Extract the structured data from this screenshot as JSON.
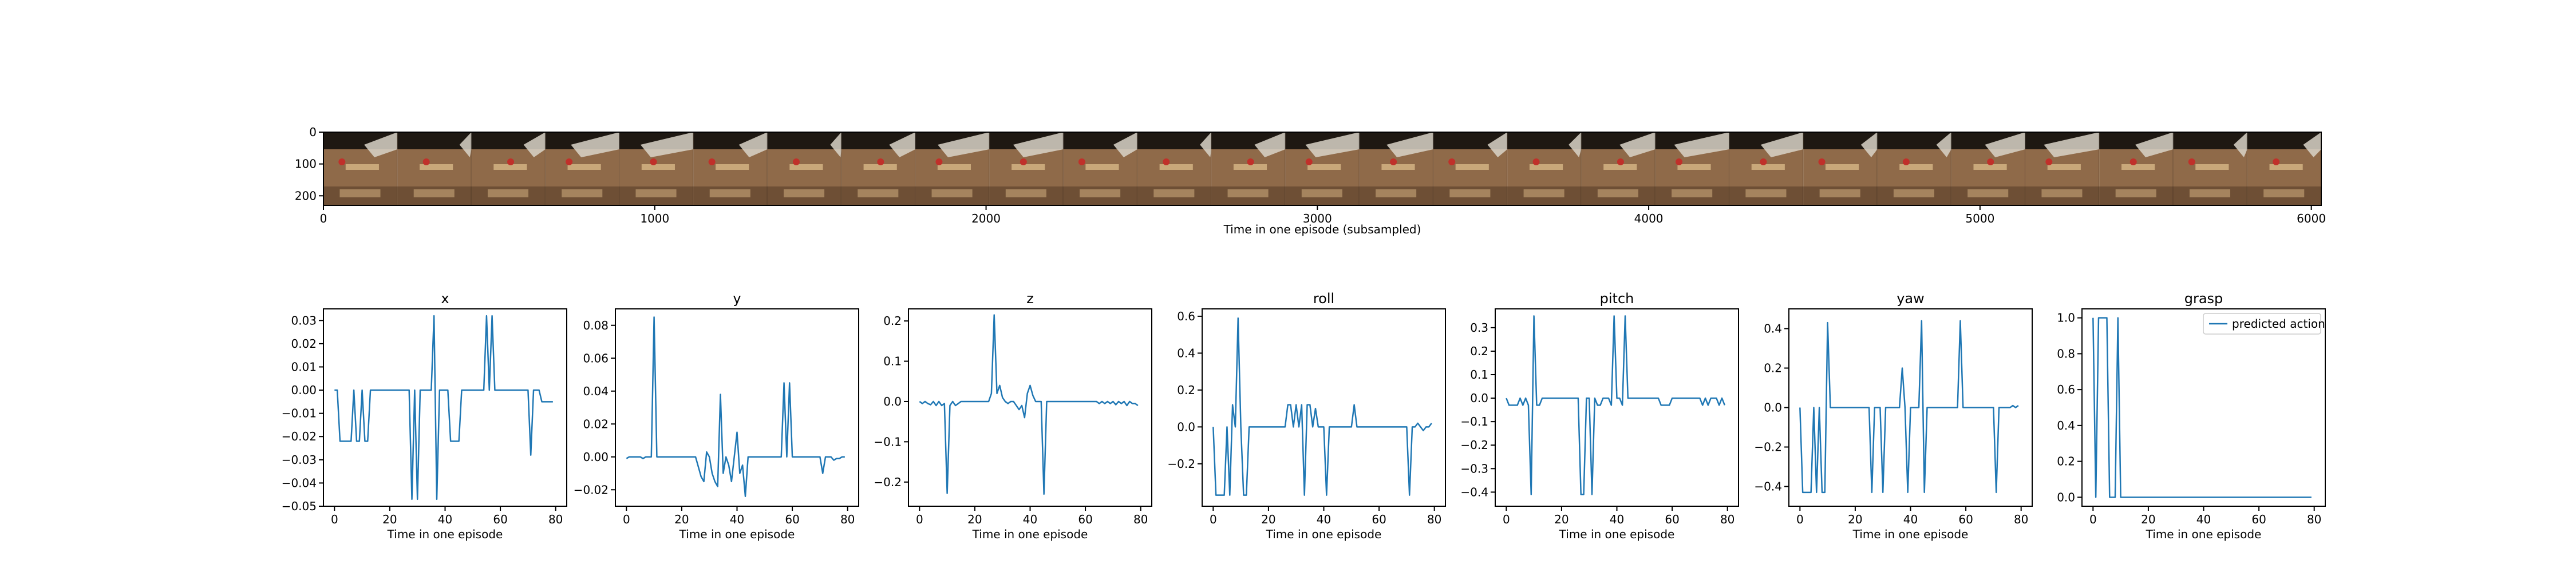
{
  "strip": {
    "xlabel": "Time in one episode (subsampled)",
    "xlim": [
      0,
      6030
    ],
    "ylim": [
      230,
      0
    ],
    "xticks": [
      0,
      1000,
      2000,
      3000,
      4000,
      5000,
      6000
    ],
    "yticks": [
      0,
      100,
      200
    ],
    "frame_count": 27,
    "frame_colors": {
      "wall": "#1e1812",
      "robot": "#d9d3c8",
      "table": "#8f6a49",
      "table_dark": "#6e4f35",
      "tray": "#c9a87a",
      "object": "#c0302a"
    }
  },
  "legend": {
    "label": "predicted action"
  },
  "colors": {
    "series": "#1f77b4"
  },
  "chart_data": [
    {
      "type": "line",
      "title": "x",
      "xlabel": "Time in one episode",
      "xlim": [
        -4,
        84
      ],
      "ylim": [
        -0.05,
        0.035
      ],
      "xticks": [
        0,
        20,
        40,
        60,
        80
      ],
      "yticks": [
        -0.05,
        -0.04,
        -0.03,
        -0.02,
        -0.01,
        0.0,
        0.01,
        0.02,
        0.03
      ],
      "tick_labels": [
        "−0.05",
        "−0.04",
        "−0.03",
        "−0.02",
        "−0.01",
        "0.00",
        "0.01",
        "0.02",
        "0.03"
      ],
      "x": [
        0,
        1,
        2,
        3,
        4,
        5,
        6,
        7,
        8,
        9,
        10,
        11,
        12,
        13,
        14,
        15,
        16,
        17,
        18,
        19,
        20,
        21,
        22,
        23,
        24,
        25,
        26,
        27,
        28,
        29,
        30,
        31,
        32,
        33,
        34,
        35,
        36,
        37,
        38,
        39,
        40,
        41,
        42,
        43,
        44,
        45,
        46,
        47,
        48,
        49,
        50,
        51,
        52,
        53,
        54,
        55,
        56,
        57,
        58,
        59,
        60,
        61,
        62,
        63,
        64,
        65,
        66,
        67,
        68,
        69,
        70,
        71,
        72,
        73,
        74,
        75,
        76,
        77,
        78,
        79
      ],
      "y": [
        0.0,
        0.0,
        -0.022,
        -0.022,
        -0.022,
        -0.022,
        -0.022,
        0.0,
        -0.022,
        -0.022,
        0.0,
        -0.022,
        -0.022,
        0.0,
        0.0,
        0.0,
        0.0,
        0.0,
        0.0,
        0.0,
        0.0,
        0.0,
        0.0,
        0.0,
        0.0,
        0.0,
        0.0,
        0.0,
        -0.047,
        0.0,
        -0.047,
        0.0,
        0.0,
        0.0,
        0.0,
        0.0,
        0.032,
        -0.047,
        0.0,
        0.0,
        0.0,
        0.0,
        -0.022,
        -0.022,
        -0.022,
        -0.022,
        0.0,
        0.0,
        0.0,
        0.0,
        0.0,
        0.0,
        0.0,
        0.0,
        0.0,
        0.032,
        0.0,
        0.032,
        0.0,
        0.0,
        0.0,
        0.0,
        0.0,
        0.0,
        0.0,
        0.0,
        0.0,
        0.0,
        0.0,
        0.0,
        0.0,
        -0.028,
        0.0,
        0.0,
        0.0,
        -0.005,
        -0.005,
        -0.005,
        -0.005,
        -0.005
      ]
    },
    {
      "type": "line",
      "title": "y",
      "xlabel": "Time in one episode",
      "xlim": [
        -4,
        84
      ],
      "ylim": [
        -0.03,
        0.09
      ],
      "xticks": [
        0,
        20,
        40,
        60,
        80
      ],
      "yticks": [
        -0.02,
        0.0,
        0.02,
        0.04,
        0.06,
        0.08
      ],
      "tick_labels": [
        "−0.02",
        "0.00",
        "0.02",
        "0.04",
        "0.06",
        "0.08"
      ],
      "x": [
        0,
        1,
        2,
        3,
        4,
        5,
        6,
        7,
        8,
        9,
        10,
        11,
        12,
        13,
        14,
        15,
        16,
        17,
        18,
        19,
        20,
        21,
        22,
        23,
        24,
        25,
        26,
        27,
        28,
        29,
        30,
        31,
        32,
        33,
        34,
        35,
        36,
        37,
        38,
        39,
        40,
        41,
        42,
        43,
        44,
        45,
        46,
        47,
        48,
        49,
        50,
        51,
        52,
        53,
        54,
        55,
        56,
        57,
        58,
        59,
        60,
        61,
        62,
        63,
        64,
        65,
        66,
        67,
        68,
        69,
        70,
        71,
        72,
        73,
        74,
        75,
        76,
        77,
        78,
        79
      ],
      "y": [
        -0.001,
        0.0,
        0.0,
        0.0,
        0.0,
        0.0,
        -0.001,
        0.0,
        0.0,
        0.0,
        0.085,
        0.0,
        0.0,
        0.0,
        0.0,
        0.0,
        0.0,
        0.0,
        0.0,
        0.0,
        0.0,
        0.0,
        0.0,
        0.0,
        0.0,
        0.0,
        -0.006,
        -0.012,
        -0.015,
        0.003,
        0.0,
        -0.01,
        -0.015,
        -0.018,
        0.038,
        -0.01,
        0.0,
        -0.005,
        -0.015,
        0.0,
        0.015,
        -0.01,
        -0.005,
        -0.024,
        0.0,
        0.0,
        0.0,
        0.0,
        0.0,
        0.0,
        0.0,
        0.0,
        0.0,
        0.0,
        0.0,
        0.0,
        0.0,
        0.045,
        0.0,
        0.045,
        0.0,
        0.0,
        0.0,
        0.0,
        0.0,
        0.0,
        0.0,
        0.0,
        0.0,
        0.0,
        0.0,
        -0.01,
        0.0,
        0.0,
        0.0,
        -0.002,
        -0.001,
        -0.001,
        0.0,
        0.0
      ]
    },
    {
      "type": "line",
      "title": "z",
      "xlabel": "Time in one episode",
      "xlim": [
        -4,
        84
      ],
      "ylim": [
        -0.26,
        0.23
      ],
      "xticks": [
        0,
        20,
        40,
        60,
        80
      ],
      "yticks": [
        -0.2,
        -0.1,
        0.0,
        0.1,
        0.2
      ],
      "tick_labels": [
        "−0.2",
        "−0.1",
        "0.0",
        "0.1",
        "0.2"
      ],
      "x": [
        0,
        1,
        2,
        3,
        4,
        5,
        6,
        7,
        8,
        9,
        10,
        11,
        12,
        13,
        14,
        15,
        16,
        17,
        18,
        19,
        20,
        21,
        22,
        23,
        24,
        25,
        26,
        27,
        28,
        29,
        30,
        31,
        32,
        33,
        34,
        35,
        36,
        37,
        38,
        39,
        40,
        41,
        42,
        43,
        44,
        45,
        46,
        47,
        48,
        49,
        50,
        51,
        52,
        53,
        54,
        55,
        56,
        57,
        58,
        59,
        60,
        61,
        62,
        63,
        64,
        65,
        66,
        67,
        68,
        69,
        70,
        71,
        72,
        73,
        74,
        75,
        76,
        77,
        78,
        79
      ],
      "y": [
        0.0,
        -0.005,
        0.0,
        -0.005,
        -0.008,
        0.0,
        -0.01,
        0.0,
        -0.01,
        -0.005,
        -0.228,
        -0.01,
        0.0,
        -0.01,
        -0.005,
        0.0,
        0.0,
        0.0,
        0.0,
        0.0,
        0.0,
        0.0,
        0.0,
        0.0,
        0.0,
        0.0,
        0.02,
        0.215,
        0.02,
        0.04,
        0.01,
        0.0,
        -0.005,
        0.0,
        0.0,
        -0.01,
        -0.02,
        -0.01,
        -0.04,
        0.02,
        0.04,
        0.015,
        0.0,
        0.0,
        0.0,
        -0.23,
        0.0,
        0.0,
        0.0,
        0.0,
        0.0,
        0.0,
        0.0,
        0.0,
        0.0,
        0.0,
        0.0,
        0.0,
        0.0,
        0.0,
        0.0,
        0.0,
        0.0,
        0.0,
        0.0,
        -0.005,
        0.0,
        -0.005,
        0.0,
        -0.005,
        0.0,
        -0.008,
        0.0,
        -0.005,
        0.0,
        -0.01,
        0.0,
        -0.005,
        -0.005,
        -0.01
      ]
    },
    {
      "type": "line",
      "title": "roll",
      "xlabel": "Time in one episode",
      "xlim": [
        -4,
        84
      ],
      "ylim": [
        -0.43,
        0.64
      ],
      "xticks": [
        0,
        20,
        40,
        60,
        80
      ],
      "yticks": [
        -0.2,
        0.0,
        0.2,
        0.4,
        0.6
      ],
      "tick_labels": [
        "−0.2",
        "0.0",
        "0.2",
        "0.4",
        "0.6"
      ],
      "x": [
        0,
        1,
        2,
        3,
        4,
        5,
        6,
        7,
        8,
        9,
        10,
        11,
        12,
        13,
        14,
        15,
        16,
        17,
        18,
        19,
        20,
        21,
        22,
        23,
        24,
        25,
        26,
        27,
        28,
        29,
        30,
        31,
        32,
        33,
        34,
        35,
        36,
        37,
        38,
        39,
        40,
        41,
        42,
        43,
        44,
        45,
        46,
        47,
        48,
        49,
        50,
        51,
        52,
        53,
        54,
        55,
        56,
        57,
        58,
        59,
        60,
        61,
        62,
        63,
        64,
        65,
        66,
        67,
        68,
        69,
        70,
        71,
        72,
        73,
        74,
        75,
        76,
        77,
        78,
        79
      ],
      "y": [
        0.0,
        -0.37,
        -0.37,
        -0.37,
        -0.37,
        0.0,
        -0.37,
        0.12,
        0.0,
        0.59,
        0.0,
        -0.37,
        -0.37,
        0.0,
        0.0,
        0.0,
        0.0,
        0.0,
        0.0,
        0.0,
        0.0,
        0.0,
        0.0,
        0.0,
        0.0,
        0.0,
        0.0,
        0.12,
        0.12,
        0.0,
        0.12,
        0.0,
        0.12,
        -0.37,
        0.12,
        0.12,
        0.0,
        0.1,
        0.0,
        0.0,
        0.0,
        -0.37,
        0.0,
        0.0,
        0.0,
        0.0,
        0.0,
        0.0,
        0.0,
        0.0,
        0.0,
        0.12,
        0.0,
        0.0,
        0.0,
        0.0,
        0.0,
        0.0,
        0.0,
        0.0,
        0.0,
        0.0,
        0.0,
        0.0,
        0.0,
        0.0,
        0.0,
        0.0,
        0.0,
        0.0,
        0.0,
        -0.37,
        0.0,
        0.0,
        0.02,
        0.0,
        -0.02,
        0.0,
        0.0,
        0.02
      ]
    },
    {
      "type": "line",
      "title": "pitch",
      "xlabel": "Time in one episode",
      "xlim": [
        -4,
        84
      ],
      "ylim": [
        -0.46,
        0.38
      ],
      "xticks": [
        0,
        20,
        40,
        60,
        80
      ],
      "yticks": [
        -0.4,
        -0.3,
        -0.2,
        -0.1,
        0.0,
        0.1,
        0.2,
        0.3
      ],
      "tick_labels": [
        "−0.4",
        "−0.3",
        "−0.2",
        "−0.1",
        "0.0",
        "0.1",
        "0.2",
        "0.3"
      ],
      "x": [
        0,
        1,
        2,
        3,
        4,
        5,
        6,
        7,
        8,
        9,
        10,
        11,
        12,
        13,
        14,
        15,
        16,
        17,
        18,
        19,
        20,
        21,
        22,
        23,
        24,
        25,
        26,
        27,
        28,
        29,
        30,
        31,
        32,
        33,
        34,
        35,
        36,
        37,
        38,
        39,
        40,
        41,
        42,
        43,
        44,
        45,
        46,
        47,
        48,
        49,
        50,
        51,
        52,
        53,
        54,
        55,
        56,
        57,
        58,
        59,
        60,
        61,
        62,
        63,
        64,
        65,
        66,
        67,
        68,
        69,
        70,
        71,
        72,
        73,
        74,
        75,
        76,
        77,
        78,
        79
      ],
      "y": [
        0.0,
        -0.03,
        -0.03,
        -0.03,
        -0.03,
        0.0,
        -0.03,
        0.0,
        -0.03,
        -0.41,
        0.35,
        -0.03,
        -0.03,
        0.0,
        0.0,
        0.0,
        0.0,
        0.0,
        0.0,
        0.0,
        0.0,
        0.0,
        0.0,
        0.0,
        0.0,
        0.0,
        0.0,
        -0.41,
        -0.41,
        0.0,
        0.0,
        -0.41,
        0.0,
        -0.03,
        -0.03,
        0.0,
        0.0,
        0.0,
        -0.03,
        0.35,
        0.0,
        0.0,
        -0.03,
        0.35,
        0.0,
        0.0,
        0.0,
        0.0,
        0.0,
        0.0,
        0.0,
        0.0,
        0.0,
        0.0,
        0.0,
        0.0,
        -0.03,
        -0.03,
        -0.03,
        -0.03,
        0.0,
        0.0,
        0.0,
        0.0,
        0.0,
        0.0,
        0.0,
        0.0,
        0.0,
        0.0,
        0.0,
        -0.03,
        0.0,
        -0.03,
        0.0,
        0.0,
        0.0,
        -0.03,
        0.0,
        -0.03
      ]
    },
    {
      "type": "line",
      "title": "yaw",
      "xlabel": "Time in one episode",
      "xlim": [
        -4,
        84
      ],
      "ylim": [
        -0.5,
        0.5
      ],
      "xticks": [
        0,
        20,
        40,
        60,
        80
      ],
      "yticks": [
        -0.4,
        -0.2,
        0.0,
        0.2,
        0.4
      ],
      "tick_labels": [
        "−0.4",
        "−0.2",
        "0.0",
        "0.2",
        "0.4"
      ],
      "x": [
        0,
        1,
        2,
        3,
        4,
        5,
        6,
        7,
        8,
        9,
        10,
        11,
        12,
        13,
        14,
        15,
        16,
        17,
        18,
        19,
        20,
        21,
        22,
        23,
        24,
        25,
        26,
        27,
        28,
        29,
        30,
        31,
        32,
        33,
        34,
        35,
        36,
        37,
        38,
        39,
        40,
        41,
        42,
        43,
        44,
        45,
        46,
        47,
        48,
        49,
        50,
        51,
        52,
        53,
        54,
        55,
        56,
        57,
        58,
        59,
        60,
        61,
        62,
        63,
        64,
        65,
        66,
        67,
        68,
        69,
        70,
        71,
        72,
        73,
        74,
        75,
        76,
        77,
        78,
        79
      ],
      "y": [
        0.0,
        -0.43,
        -0.43,
        -0.43,
        -0.43,
        0.0,
        -0.43,
        0.0,
        -0.43,
        -0.43,
        0.43,
        0.0,
        0.0,
        0.0,
        0.0,
        0.0,
        0.0,
        0.0,
        0.0,
        0.0,
        0.0,
        0.0,
        0.0,
        0.0,
        0.0,
        0.0,
        -0.43,
        0.0,
        0.0,
        0.0,
        -0.43,
        0.0,
        0.0,
        0.0,
        0.0,
        0.0,
        0.0,
        0.2,
        0.0,
        -0.43,
        0.0,
        0.0,
        0.0,
        0.0,
        0.44,
        -0.43,
        0.0,
        0.0,
        0.0,
        0.0,
        0.0,
        0.0,
        0.0,
        0.0,
        0.0,
        0.0,
        0.0,
        0.0,
        0.44,
        0.0,
        0.0,
        0.0,
        0.0,
        0.0,
        0.0,
        0.0,
        0.0,
        0.0,
        0.0,
        0.0,
        0.0,
        -0.43,
        0.0,
        0.0,
        0.0,
        0.0,
        0.0,
        0.01,
        0.0,
        0.01
      ]
    },
    {
      "type": "line",
      "title": "grasp",
      "xlabel": "Time in one episode",
      "xlim": [
        -4,
        84
      ],
      "ylim": [
        -0.05,
        1.05
      ],
      "xticks": [
        0,
        20,
        40,
        60,
        80
      ],
      "yticks": [
        0.0,
        0.2,
        0.4,
        0.6,
        0.8,
        1.0
      ],
      "tick_labels": [
        "0.0",
        "0.2",
        "0.4",
        "0.6",
        "0.8",
        "1.0"
      ],
      "legend": "top-right",
      "series_name": "predicted action",
      "x": [
        0,
        1,
        2,
        3,
        4,
        5,
        6,
        7,
        8,
        9,
        10,
        11,
        12,
        13,
        14,
        15,
        16,
        17,
        18,
        19,
        20,
        21,
        22,
        23,
        24,
        25,
        26,
        27,
        28,
        29,
        30,
        31,
        32,
        33,
        34,
        35,
        36,
        37,
        38,
        39,
        40,
        41,
        42,
        43,
        44,
        45,
        46,
        47,
        48,
        49,
        50,
        51,
        52,
        53,
        54,
        55,
        56,
        57,
        58,
        59,
        60,
        61,
        62,
        63,
        64,
        65,
        66,
        67,
        68,
        69,
        70,
        71,
        72,
        73,
        74,
        75,
        76,
        77,
        78,
        79
      ],
      "y": [
        1.0,
        0.0,
        1.0,
        1.0,
        1.0,
        1.0,
        0.0,
        0.0,
        0.0,
        1.0,
        0.0,
        0.0,
        0.0,
        0.0,
        0.0,
        0.0,
        0.0,
        0.0,
        0.0,
        0.0,
        0.0,
        0.0,
        0.0,
        0.0,
        0.0,
        0.0,
        0.0,
        0.0,
        0.0,
        0.0,
        0.0,
        0.0,
        0.0,
        0.0,
        0.0,
        0.0,
        0.0,
        0.0,
        0.0,
        0.0,
        0.0,
        0.0,
        0.0,
        0.0,
        0.0,
        0.0,
        0.0,
        0.0,
        0.0,
        0.0,
        0.0,
        0.0,
        0.0,
        0.0,
        0.0,
        0.0,
        0.0,
        0.0,
        0.0,
        0.0,
        0.0,
        0.0,
        0.0,
        0.0,
        0.0,
        0.0,
        0.0,
        0.0,
        0.0,
        0.0,
        0.0,
        0.0,
        0.0,
        0.0,
        0.0,
        0.0,
        0.0,
        0.0,
        0.0,
        0.0
      ]
    }
  ]
}
